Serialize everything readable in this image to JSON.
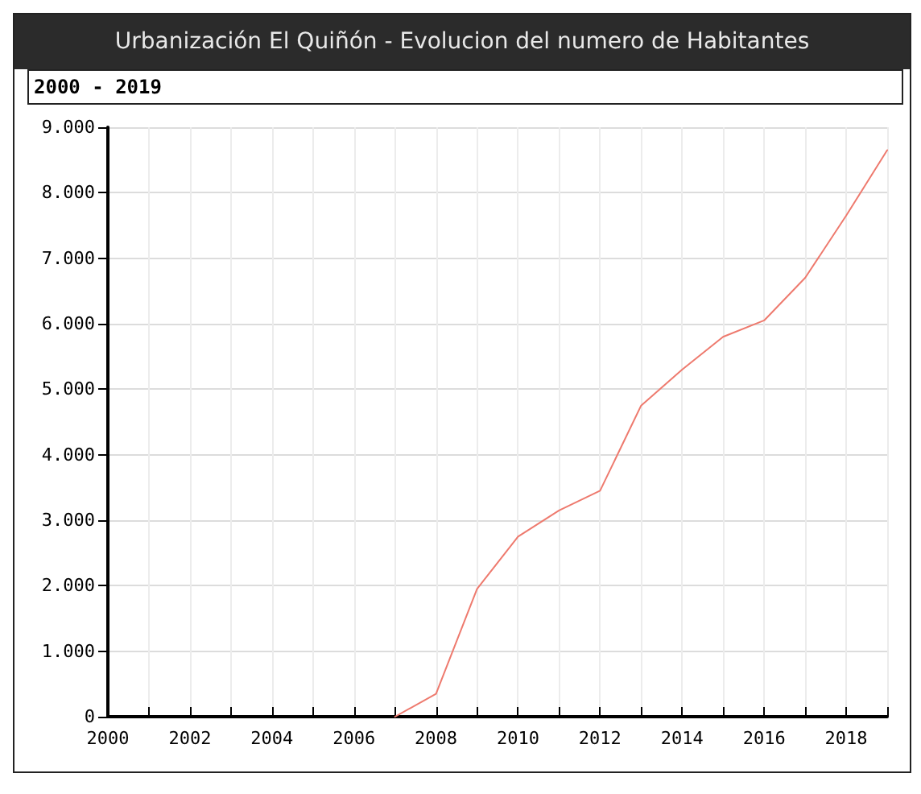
{
  "chart_data": {
    "type": "line",
    "title": "Urbanización El Quiñón - Evolucion del numero de Habitantes",
    "subtitle": "2000 - 2019",
    "x": [
      2007,
      2008,
      2009,
      2010,
      2011,
      2012,
      2013,
      2014,
      2015,
      2016,
      2017,
      2018,
      2019
    ],
    "series": [
      {
        "color": "#ee7a6e",
        "values": [
          0,
          350,
          1950,
          2750,
          3150,
          3450,
          4750,
          5300,
          5800,
          6050,
          6700,
          7650,
          8650
        ]
      }
    ],
    "xlim": [
      2000,
      2019
    ],
    "xticks": [
      2000,
      {
        "value": 2001,
        "label": null
      },
      2002,
      {
        "value": 2003,
        "label": null
      },
      2004,
      {
        "value": 2005,
        "label": null
      },
      2006,
      {
        "value": 2007,
        "label": null
      },
      2008,
      {
        "value": 2009,
        "label": null
      },
      2010,
      {
        "value": 2011,
        "label": null
      },
      2012,
      {
        "value": 2013,
        "label": null
      },
      2014,
      {
        "value": 2015,
        "label": null
      },
      2016,
      {
        "value": 2017,
        "label": null
      },
      2018,
      {
        "value": 2019,
        "label": null
      }
    ],
    "ylim": [
      0,
      9000
    ],
    "yticks": [
      0,
      {
        "value": 1000,
        "label": "1.000"
      },
      {
        "value": 2000,
        "label": "2.000"
      },
      {
        "value": 3000,
        "label": "3.000"
      },
      {
        "value": 4000,
        "label": "4.000"
      },
      {
        "value": 5000,
        "label": "5.000"
      },
      {
        "value": 6000,
        "label": "6.000"
      },
      {
        "value": 7000,
        "label": "7.000"
      },
      {
        "value": 8000,
        "label": "8.000"
      },
      {
        "value": 9000,
        "label": "9.000"
      }
    ],
    "grid": true,
    "marker": "none",
    "line_style": "solid"
  }
}
